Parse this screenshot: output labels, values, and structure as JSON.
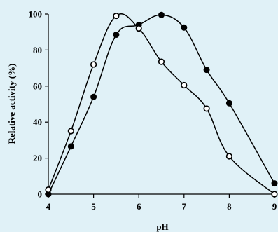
{
  "colors": {
    "background": "#e0f1f7",
    "series_filled": "#000000",
    "series_open_fill": "#ffffff",
    "axis": "#000000"
  },
  "chart_data": {
    "type": "scatter",
    "title": "",
    "xlabel": "pH",
    "ylabel": "Relative activity (%)",
    "xlim": [
      4,
      9
    ],
    "ylim": [
      0,
      100
    ],
    "x_ticks": [
      "4",
      "5",
      "6",
      "7",
      "8",
      "9"
    ],
    "y_ticks": [
      "0",
      "20",
      "40",
      "60",
      "80",
      "100"
    ],
    "grid": false,
    "legend": "none",
    "series": [
      {
        "marker": "filled-circle",
        "x": [
          4,
          4.5,
          5,
          5.5,
          6,
          6.5,
          7,
          7.5,
          8,
          9
        ],
        "y": [
          0,
          26.5,
          54,
          88.5,
          94,
          99.5,
          92.5,
          69,
          50.5,
          6
        ]
      },
      {
        "marker": "open-circle",
        "x": [
          4,
          4.5,
          5,
          5.5,
          6,
          6.5,
          7,
          7.5,
          8,
          9
        ],
        "y": [
          2.5,
          35,
          72,
          99,
          92,
          73.5,
          60.5,
          47.5,
          21,
          0
        ]
      }
    ]
  }
}
